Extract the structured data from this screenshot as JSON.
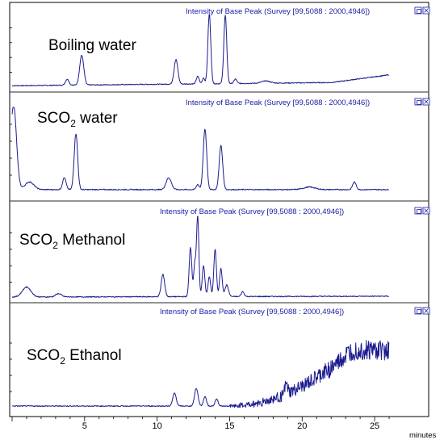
{
  "chart_data": {
    "type": "line",
    "xlabel": "minutes",
    "xlim": [
      0,
      27
    ],
    "x_ticks": [
      "5",
      "10",
      "15",
      "20",
      "25"
    ],
    "colors": {
      "trace": "#1c1c8f",
      "header": "#1a1aa6",
      "icon": "#1a1aa6"
    },
    "icons": [
      "restore-window-icon",
      "close-window-icon"
    ],
    "panels": [
      {
        "title_main": "Boiling water",
        "title_sub": "",
        "title_rest": "",
        "header": "Intensity of Base Peak (Survey [99,5088 : 2000,4946])",
        "ylim": [
          0,
          100
        ],
        "baseline_start": 2,
        "baseline_end": 7,
        "trend": "rise_end",
        "peaks": [
          {
            "x": 3.8,
            "y": 8,
            "w": 0.12
          },
          {
            "x": 4.8,
            "y": 40,
            "w": 0.14
          },
          {
            "x": 11.3,
            "y": 33,
            "w": 0.13
          },
          {
            "x": 12.8,
            "y": 10,
            "w": 0.1
          },
          {
            "x": 13.2,
            "y": 8,
            "w": 0.08
          },
          {
            "x": 13.6,
            "y": 94,
            "w": 0.1
          },
          {
            "x": 14.7,
            "y": 92,
            "w": 0.1
          },
          {
            "x": 15.4,
            "y": 6,
            "w": 0.1
          },
          {
            "x": 17.5,
            "y": 3,
            "w": 0.3
          }
        ]
      },
      {
        "title_main": "SCO",
        "title_sub": "2",
        "title_rest": " water",
        "header": "Intensity of Base Peak (Survey [99,5088 : 2000,4946])",
        "ylim": [
          0,
          100
        ],
        "baseline_start": 3,
        "baseline_end": 3,
        "trend": "flat",
        "peaks": [
          {
            "x": 0.1,
            "y": 100,
            "w": 0.2
          },
          {
            "x": 1.2,
            "y": 9,
            "w": 0.3
          },
          {
            "x": 3.6,
            "y": 14,
            "w": 0.12
          },
          {
            "x": 4.4,
            "y": 66,
            "w": 0.12
          },
          {
            "x": 10.8,
            "y": 14,
            "w": 0.18
          },
          {
            "x": 12.8,
            "y": 6,
            "w": 0.1
          },
          {
            "x": 13.3,
            "y": 71,
            "w": 0.12
          },
          {
            "x": 14.4,
            "y": 52,
            "w": 0.12
          },
          {
            "x": 20.5,
            "y": 3,
            "w": 0.4
          },
          {
            "x": 23.6,
            "y": 9,
            "w": 0.12
          }
        ]
      },
      {
        "title_main": "SCO",
        "title_sub": "2",
        "title_rest": " Methanol",
        "header": "Intensity of Base Peak (Survey [99,5088 : 2000,4946])",
        "ylim": [
          0,
          100
        ],
        "baseline_start": 2,
        "baseline_end": 3,
        "trend": "flat",
        "peaks": [
          {
            "x": 1.0,
            "y": 12,
            "w": 0.3
          },
          {
            "x": 3.2,
            "y": 4,
            "w": 0.2
          },
          {
            "x": 10.4,
            "y": 27,
            "w": 0.12
          },
          {
            "x": 12.3,
            "y": 60,
            "w": 0.09
          },
          {
            "x": 12.6,
            "y": 40,
            "w": 0.08
          },
          {
            "x": 12.8,
            "y": 97,
            "w": 0.08
          },
          {
            "x": 13.2,
            "y": 38,
            "w": 0.09
          },
          {
            "x": 13.6,
            "y": 24,
            "w": 0.09
          },
          {
            "x": 14.0,
            "y": 57,
            "w": 0.09
          },
          {
            "x": 14.4,
            "y": 34,
            "w": 0.09
          },
          {
            "x": 14.8,
            "y": 14,
            "w": 0.12
          },
          {
            "x": 15.9,
            "y": 6,
            "w": 0.1
          }
        ]
      },
      {
        "title_main": "SCO",
        "title_sub": "2",
        "title_rest": " Ethanol",
        "header": "Intensity of Base Peak (Survey [99,5088 : 2000,4946])",
        "ylim": [
          0,
          100
        ],
        "baseline_start": 2,
        "baseline_end": 2,
        "trend": "ethanol",
        "peaks": [
          {
            "x": 11.2,
            "y": 16,
            "w": 0.12
          },
          {
            "x": 12.7,
            "y": 22,
            "w": 0.12
          },
          {
            "x": 13.3,
            "y": 12,
            "w": 0.1
          },
          {
            "x": 14.1,
            "y": 9,
            "w": 0.1
          },
          {
            "x": 18.9,
            "y": 12,
            "w": 0.1
          }
        ]
      }
    ]
  }
}
